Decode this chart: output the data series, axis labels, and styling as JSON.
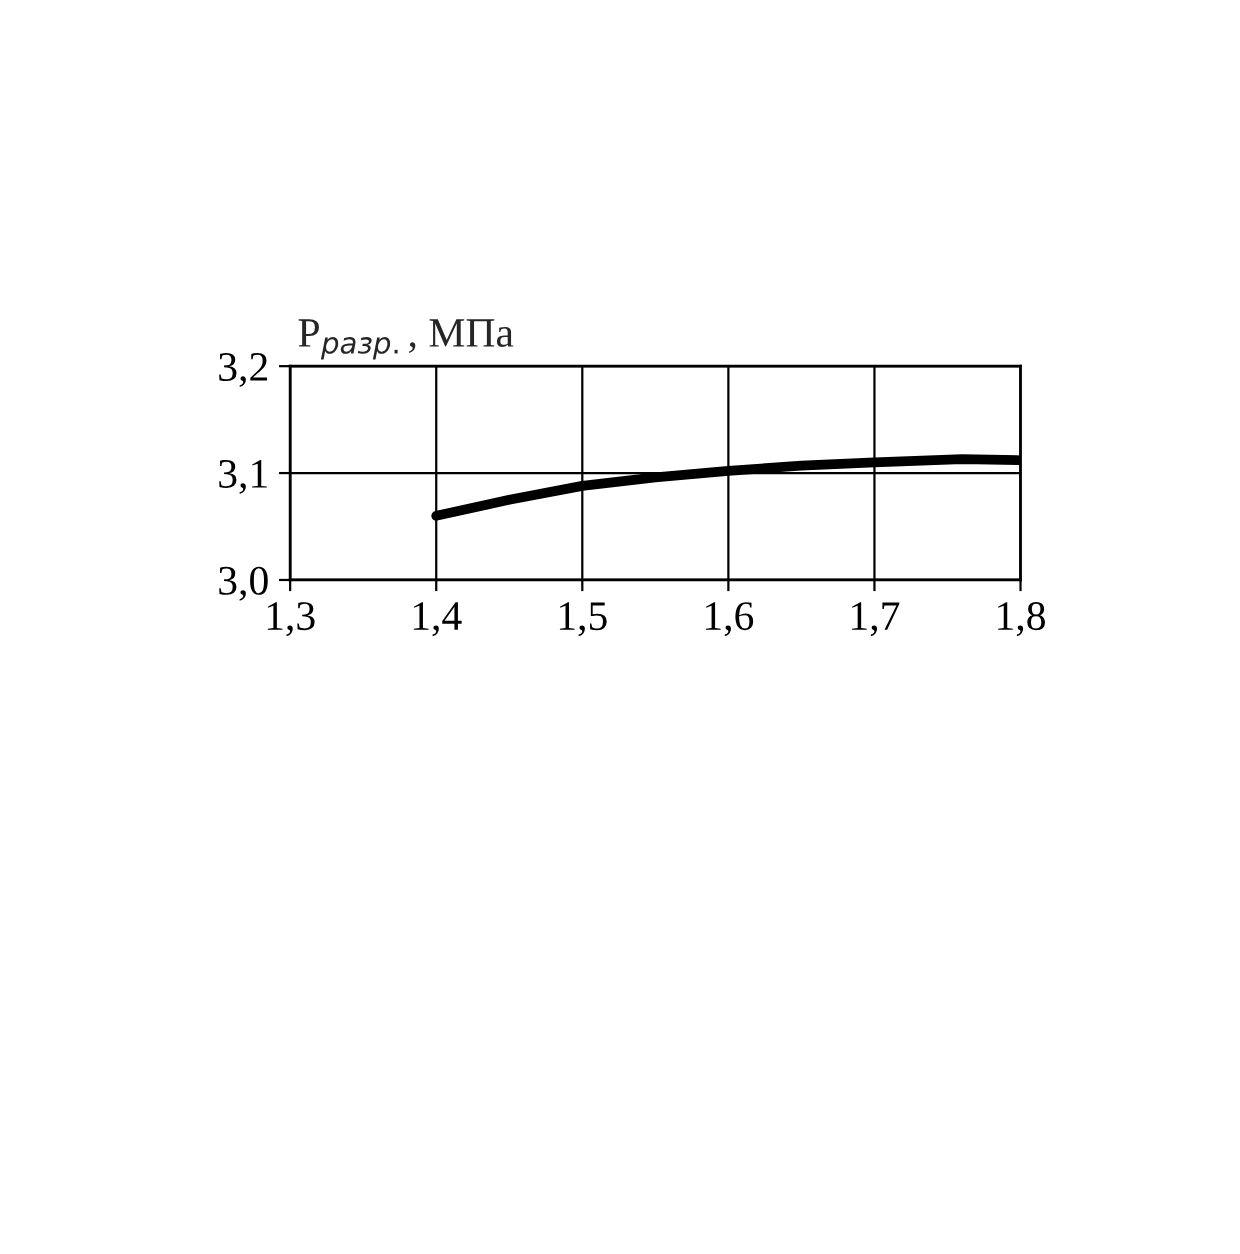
{
  "chart_data": {
    "type": "line",
    "ylabel": "P$_{разр.}$, МПа",
    "x": [
      1.4,
      1.45,
      1.5,
      1.55,
      1.6,
      1.65,
      1.7,
      1.76,
      1.8
    ],
    "series": [
      {
        "color": "#000000",
        "values": [
          3.06,
          3.075,
          3.088,
          3.096,
          3.102,
          3.107,
          3.11,
          3.113,
          3.112
        ]
      }
    ],
    "xlim": [
      1.3,
      1.8
    ],
    "xticks": [
      {
        "value": 1.3,
        "label": "1,3"
      },
      {
        "value": 1.4,
        "label": "1,4"
      },
      {
        "value": 1.5,
        "label": "1,5"
      },
      {
        "value": 1.6,
        "label": "1,6"
      },
      {
        "value": 1.7,
        "label": "1,7"
      },
      {
        "value": 1.8,
        "label": "1,8"
      }
    ],
    "ylim": [
      3.0,
      3.2
    ],
    "yticks": [
      {
        "value": 3.0,
        "label": "3,0"
      },
      {
        "value": 3.1,
        "label": "3,1"
      },
      {
        "value": 3.2,
        "label": "3,2"
      }
    ],
    "grid": true,
    "marker": "none",
    "line_style": "solid"
  }
}
